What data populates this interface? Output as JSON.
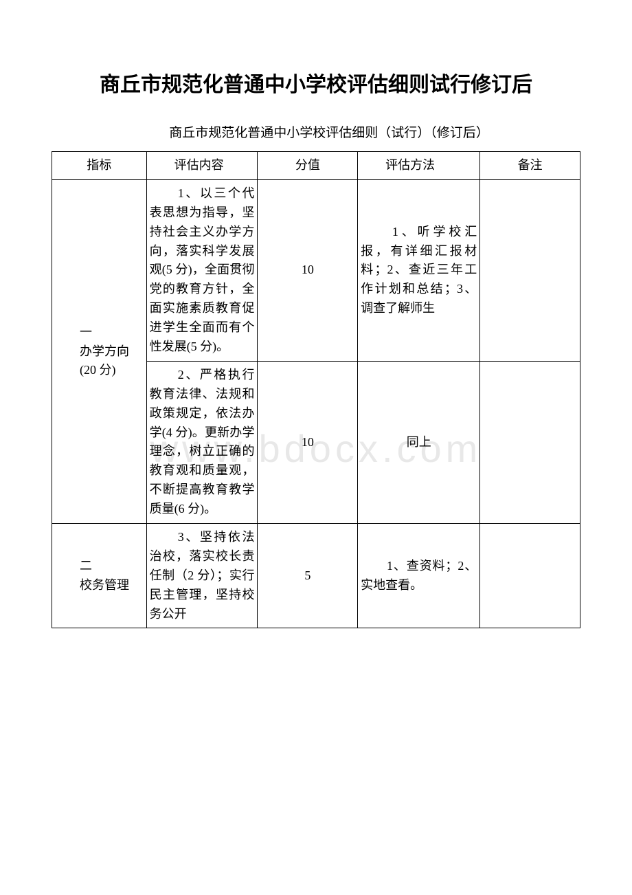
{
  "document": {
    "type": "table",
    "title": "商丘市规范化普通中小学校评估细则试行修订后",
    "subtitle": "商丘市规范化普通中小学校评估细则（试行）（修订后）",
    "watermark": "www.bdocx.com",
    "background_color": "#ffffff",
    "text_color": "#000000",
    "watermark_color": "#e8e8e8",
    "title_fontsize": 30,
    "body_fontsize": 18
  },
  "table": {
    "columns": [
      {
        "label": "指标",
        "width_pct": 17,
        "align": "left"
      },
      {
        "label": "评估内容",
        "width_pct": 20,
        "align": "left"
      },
      {
        "label": "分值",
        "width_pct": 18,
        "align": "center"
      },
      {
        "label": "评估方法",
        "width_pct": 22,
        "align": "left"
      },
      {
        "label": "备注",
        "width_pct": 18,
        "align": "center"
      }
    ],
    "header": {
      "c1": "指标",
      "c2": "　　评估内容",
      "c3": "分值",
      "c4": "　　评估方法",
      "c5": "备注"
    },
    "groups": [
      {
        "indicator_lines": [
          "　　一",
          "　　办学方向",
          "",
          "　　(20 分)"
        ],
        "rows": [
          {
            "content": "　　1、以三个代表思想为指导，坚持社会主义办学方向，落实科学发展观(5 分)，全面贯彻党的教育方针，全面实施素质教育促进学生全面而有个性发展(5 分)。",
            "score": "10",
            "method": "　　1、听学校汇报，有详细汇报材料；2、查近三年工作计划和总结；3、调查了解师生",
            "remark": ""
          },
          {
            "content": "　　2、严格执行教育法律、法规和政策规定，依法办学(4 分)。更新办学理念，树立正确的教育观和质量观，不断提高教育教学质量(6 分)。",
            "score": "10",
            "method": "同上",
            "remark": ""
          }
        ]
      },
      {
        "indicator_lines": [
          "　　二",
          "　　校务管理"
        ],
        "rows": [
          {
            "content": "　　3、坚持依法治校，落实校长责任制（2 分）；实行民主管理，坚持校务公开",
            "score": "5",
            "method": "　　1、查资料；2、实地查看。",
            "remark": ""
          }
        ]
      }
    ]
  }
}
